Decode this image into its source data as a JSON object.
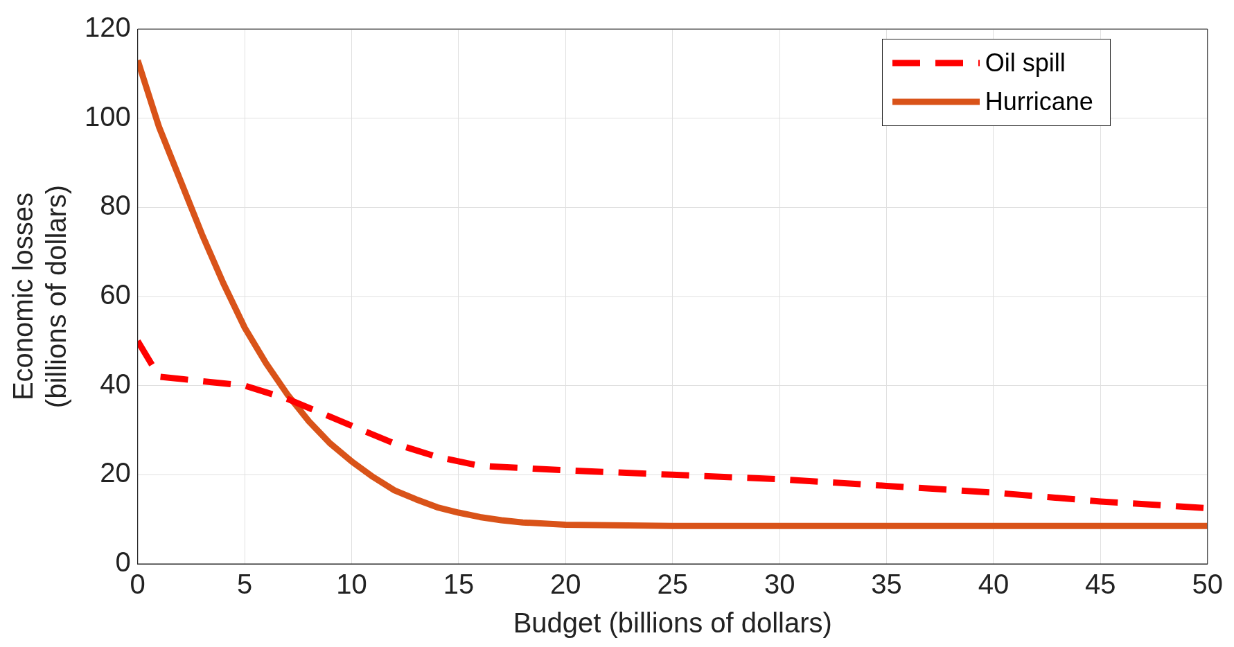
{
  "chart_data": {
    "type": "line",
    "xlabel": "Budget (billions of dollars)",
    "ylabel": "Economic losses\n(billions of dollars)",
    "xlim": [
      0,
      50
    ],
    "xticks": [
      0,
      5,
      10,
      15,
      20,
      25,
      30,
      35,
      40,
      45,
      50
    ],
    "ylim": [
      0,
      120
    ],
    "yticks": [
      0,
      20,
      40,
      60,
      80,
      100,
      120
    ],
    "grid": true,
    "legend": "top right",
    "marker": "none",
    "series": [
      {
        "name": "Oil spill",
        "color": "#ff0000",
        "line_style": "dashed",
        "x": [
          0,
          1,
          3,
          5,
          7,
          9,
          10,
          12,
          14,
          16,
          18,
          20,
          25,
          30,
          35,
          40,
          45,
          50
        ],
        "values": [
          50,
          42,
          41,
          40,
          37,
          33,
          31,
          27,
          24,
          22,
          21.5,
          21,
          20,
          19,
          17.5,
          16,
          14,
          12.5
        ]
      },
      {
        "name": "Hurricane",
        "color": "#d95319",
        "line_style": "solid",
        "x": [
          0,
          1,
          2,
          3,
          4,
          5,
          6,
          7,
          8,
          9,
          10,
          11,
          12,
          13,
          14,
          15,
          16,
          17,
          18,
          20,
          25,
          30,
          40,
          50
        ],
        "values": [
          113,
          98,
          86,
          74,
          63,
          53,
          45,
          38,
          32,
          27,
          23,
          19.5,
          16.5,
          14.5,
          12.7,
          11.5,
          10.5,
          9.8,
          9.3,
          8.8,
          8.5,
          8.5,
          8.5,
          8.5
        ]
      }
    ]
  }
}
